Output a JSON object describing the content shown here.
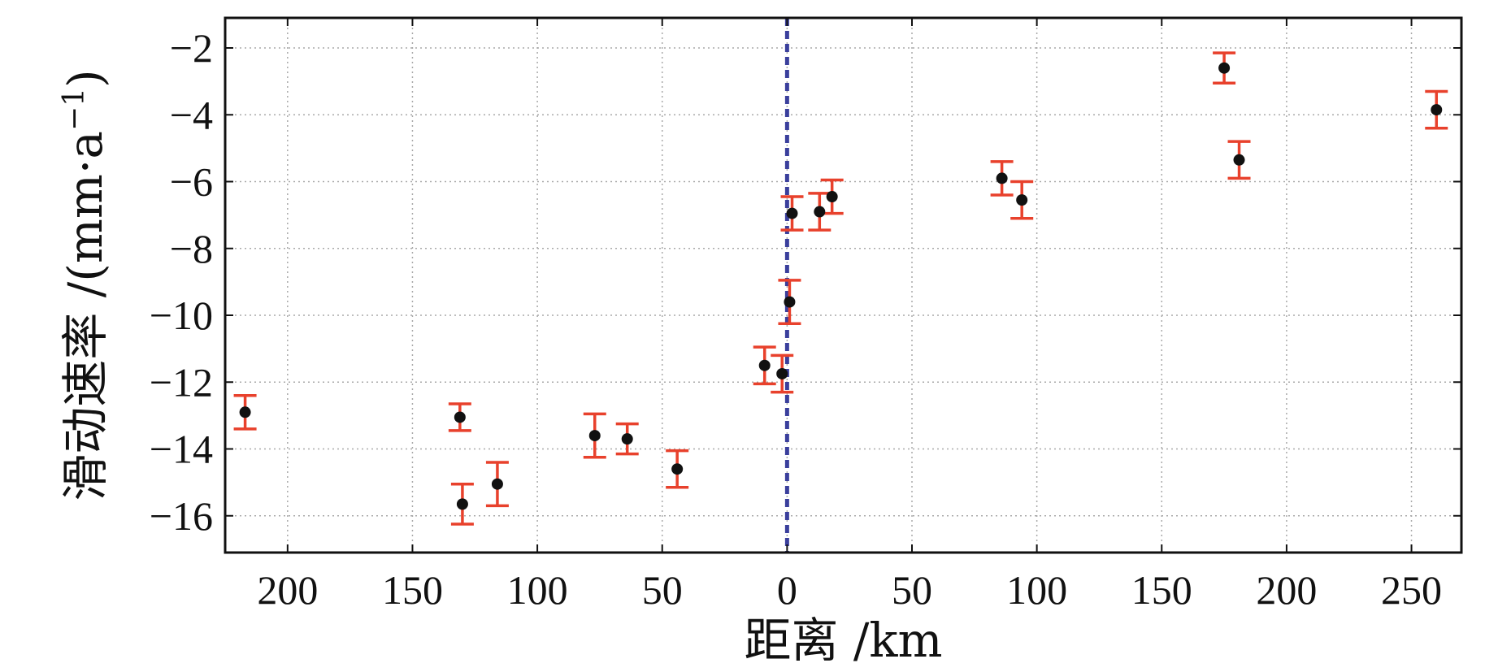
{
  "chart_data": {
    "type": "scatter",
    "xlabel": "距离 /km",
    "ylabel": "滑动速率 /(mm·a",
    "ylabel_sup": "−1",
    "ylabel_close": ")",
    "xlim": [
      -225,
      270
    ],
    "ylim": [
      -17.1,
      -1.1
    ],
    "xticks": [
      {
        "value": -200,
        "label": "200"
      },
      {
        "value": -150,
        "label": "150"
      },
      {
        "value": -100,
        "label": "100"
      },
      {
        "value": -50,
        "label": "50"
      },
      {
        "value": 0,
        "label": "0"
      },
      {
        "value": 50,
        "label": "50"
      },
      {
        "value": 100,
        "label": "100"
      },
      {
        "value": 150,
        "label": "150"
      },
      {
        "value": 200,
        "label": "200"
      },
      {
        "value": 250,
        "label": "250"
      }
    ],
    "yticks": [
      {
        "value": -2,
        "label": "−2"
      },
      {
        "value": -4,
        "label": "−4"
      },
      {
        "value": -6,
        "label": "−6"
      },
      {
        "value": -8,
        "label": "−8"
      },
      {
        "value": -10,
        "label": "−10"
      },
      {
        "value": -12,
        "label": "−12"
      },
      {
        "value": -14,
        "label": "−14"
      },
      {
        "value": -16,
        "label": "−16"
      }
    ],
    "grid": true,
    "reference_line_x": 0,
    "colors": {
      "point": "#111111",
      "errorbar": "#e8412c",
      "reference_line": "#3a3f9c"
    },
    "points": [
      {
        "x": -217,
        "y": -12.9,
        "err": 0.5
      },
      {
        "x": -131,
        "y": -13.05,
        "err": 0.4
      },
      {
        "x": -130,
        "y": -15.65,
        "err": 0.6
      },
      {
        "x": -116,
        "y": -15.05,
        "err": 0.65
      },
      {
        "x": -77,
        "y": -13.6,
        "err": 0.65
      },
      {
        "x": -64,
        "y": -13.7,
        "err": 0.45
      },
      {
        "x": -44,
        "y": -14.6,
        "err": 0.55
      },
      {
        "x": -9,
        "y": -11.5,
        "err": 0.55
      },
      {
        "x": -2,
        "y": -11.75,
        "err": 0.55
      },
      {
        "x": 1,
        "y": -9.6,
        "err": 0.65
      },
      {
        "x": 2,
        "y": -6.95,
        "err": 0.5
      },
      {
        "x": 13,
        "y": -6.9,
        "err": 0.55
      },
      {
        "x": 18,
        "y": -6.45,
        "err": 0.5
      },
      {
        "x": 86,
        "y": -5.9,
        "err": 0.5
      },
      {
        "x": 94,
        "y": -6.55,
        "err": 0.55
      },
      {
        "x": 175,
        "y": -2.6,
        "err": 0.45
      },
      {
        "x": 181,
        "y": -5.35,
        "err": 0.55
      },
      {
        "x": 260,
        "y": -3.85,
        "err": 0.55
      }
    ]
  }
}
